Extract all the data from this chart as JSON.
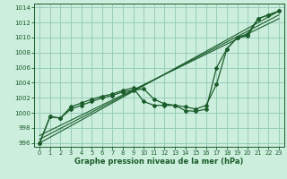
{
  "xlabel": "Graphe pression niveau de la mer (hPa)",
  "background_color": "#cceedd",
  "grid_color": "#99ccbb",
  "line_color": "#1a5c2a",
  "xlim": [
    -0.5,
    23.5
  ],
  "ylim": [
    995.5,
    1014.5
  ],
  "yticks": [
    996,
    998,
    1000,
    1002,
    1004,
    1006,
    1008,
    1010,
    1012,
    1014
  ],
  "xticks": [
    0,
    1,
    2,
    3,
    4,
    5,
    6,
    7,
    8,
    9,
    10,
    11,
    12,
    13,
    14,
    15,
    16,
    17,
    18,
    19,
    20,
    21,
    22,
    23
  ],
  "series": [
    [
      996.0,
      999.5,
      999.3,
      1000.5,
      1001.0,
      1001.5,
      1002.0,
      1002.3,
      1002.8,
      1003.0,
      1003.2,
      1001.8,
      1001.2,
      1001.0,
      1000.8,
      1000.5,
      1001.0,
      1003.8,
      1008.5,
      1010.0,
      1010.2,
      1012.5,
      1013.0,
      1013.5
    ],
    [
      996.0,
      999.5,
      999.3,
      1000.8,
      1001.3,
      1001.8,
      1002.2,
      1002.5,
      1003.0,
      1003.3,
      1001.5,
      1001.0,
      1001.0,
      1001.0,
      1000.3,
      1000.2,
      1000.5,
      1006.0,
      1008.5,
      1010.0,
      1010.5,
      1012.5,
      1013.0,
      1013.5
    ],
    [
      996.0,
      999.5,
      999.2,
      1000.5,
      1001.0,
      1001.4,
      1001.9,
      1002.4,
      1002.9,
      1003.1,
      1003.4,
      1001.7,
      1001.1,
      1001.0,
      1000.6,
      1000.3,
      1001.1,
      1004.5,
      1008.5,
      1010.0,
      1010.3,
      1012.5,
      1013.0,
      1013.5
    ],
    [
      996.0,
      999.5,
      999.2,
      1000.5,
      1001.0,
      1001.4,
      1001.9,
      1002.4,
      1002.9,
      1003.1,
      1003.4,
      1001.7,
      1001.1,
      1001.0,
      1000.6,
      1000.3,
      1001.1,
      1004.5,
      1008.5,
      1010.0,
      1010.3,
      1012.5,
      1013.0,
      1013.5
    ]
  ],
  "straight_lines": [
    [
      [
        0,
        23
      ],
      [
        996.0,
        1013.5
      ]
    ],
    [
      [
        0,
        23
      ],
      [
        996.5,
        1013.0
      ]
    ],
    [
      [
        0,
        23
      ],
      [
        997.0,
        1012.5
      ]
    ]
  ]
}
